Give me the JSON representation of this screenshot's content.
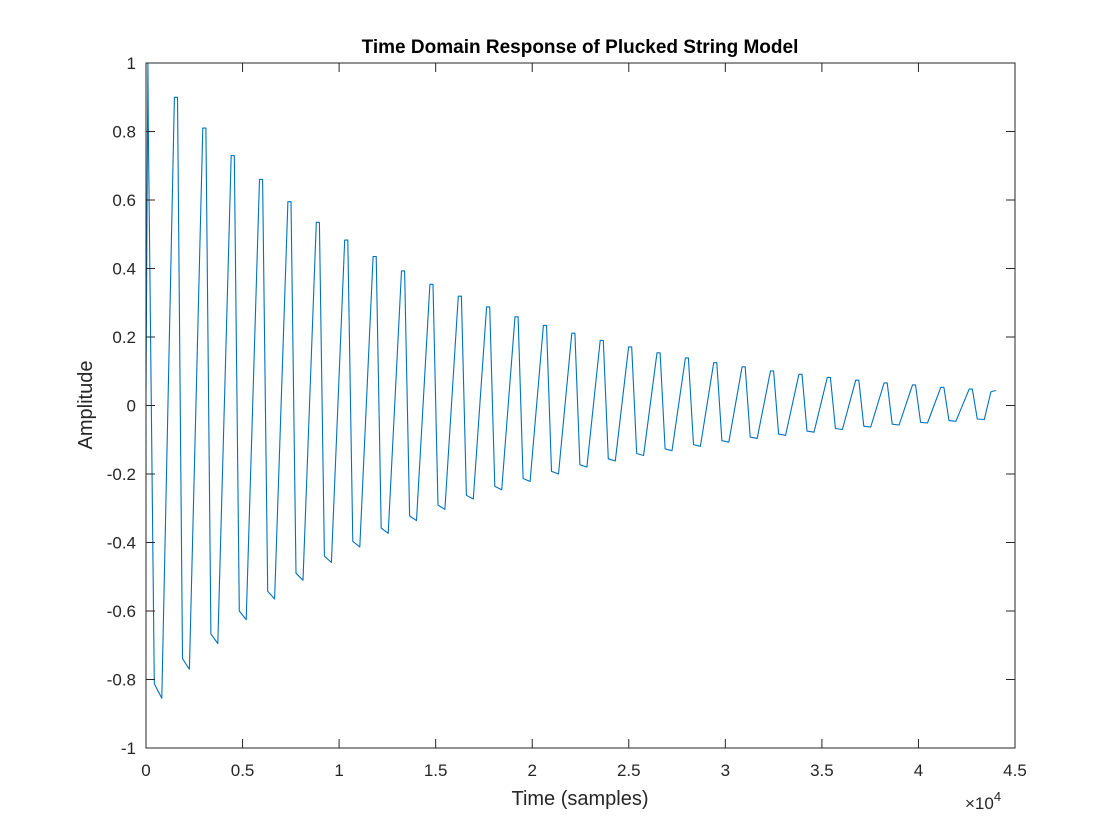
{
  "chart_data": {
    "type": "line",
    "title": "Time Domain Response of Plucked String Model",
    "xlabel": "Time (samples)",
    "ylabel": "Amplitude",
    "xlim": [
      0,
      45000
    ],
    "ylim": [
      -1,
      1
    ],
    "x_exponent_label": "×10",
    "x_exponent_power": "4",
    "x_ticks": [
      {
        "value": 0,
        "label": "0"
      },
      {
        "value": 5000,
        "label": "0.5"
      },
      {
        "value": 10000,
        "label": "1"
      },
      {
        "value": 15000,
        "label": "1.5"
      },
      {
        "value": 20000,
        "label": "2"
      },
      {
        "value": 25000,
        "label": "2.5"
      },
      {
        "value": 30000,
        "label": "3"
      },
      {
        "value": 35000,
        "label": "3.5"
      },
      {
        "value": 40000,
        "label": "4"
      },
      {
        "value": 45000,
        "label": "4.5"
      }
    ],
    "y_ticks": [
      {
        "value": -1,
        "label": "-1"
      },
      {
        "value": -0.8,
        "label": "-0.8"
      },
      {
        "value": -0.6,
        "label": "-0.6"
      },
      {
        "value": -0.4,
        "label": "-0.4"
      },
      {
        "value": -0.2,
        "label": "-0.2"
      },
      {
        "value": 0,
        "label": "0"
      },
      {
        "value": 0.2,
        "label": "0.2"
      },
      {
        "value": 0.4,
        "label": "0.4"
      },
      {
        "value": 0.6,
        "label": "0.6"
      },
      {
        "value": 0.8,
        "label": "0.8"
      },
      {
        "value": 1,
        "label": "1"
      }
    ],
    "grid": false,
    "series": [
      {
        "color": "#0072bd",
        "period": 1470,
        "peak_x": [
          100,
          1470,
          2940,
          4410,
          5880,
          7350,
          8820,
          10290,
          11760,
          13230,
          14700,
          16170,
          17640,
          19110,
          20580,
          22050,
          23520,
          24990,
          26460,
          27930,
          29400,
          30870,
          32340,
          33810,
          35280,
          36750,
          38220,
          39690,
          41160,
          42630
        ],
        "peak_y": [
          1.0,
          0.9,
          0.81,
          0.73,
          0.66,
          0.595,
          0.535,
          0.483,
          0.435,
          0.393,
          0.354,
          0.319,
          0.288,
          0.259,
          0.234,
          0.211,
          0.19,
          0.171,
          0.154,
          0.139,
          0.125,
          0.113,
          0.101,
          0.091,
          0.082,
          0.074,
          0.066,
          0.06,
          0.053,
          0.048
        ],
        "trough_y": [
          -0.855,
          -0.77,
          -0.695,
          -0.625,
          -0.565,
          -0.51,
          -0.458,
          -0.413,
          -0.373,
          -0.336,
          -0.303,
          -0.273,
          -0.246,
          -0.222,
          -0.2,
          -0.18,
          -0.162,
          -0.146,
          -0.132,
          -0.119,
          -0.107,
          -0.096,
          -0.087,
          -0.078,
          -0.07,
          -0.063,
          -0.057,
          -0.051,
          -0.046,
          -0.041
        ],
        "end_x": 44000,
        "end_y": 0.044
      }
    ]
  }
}
